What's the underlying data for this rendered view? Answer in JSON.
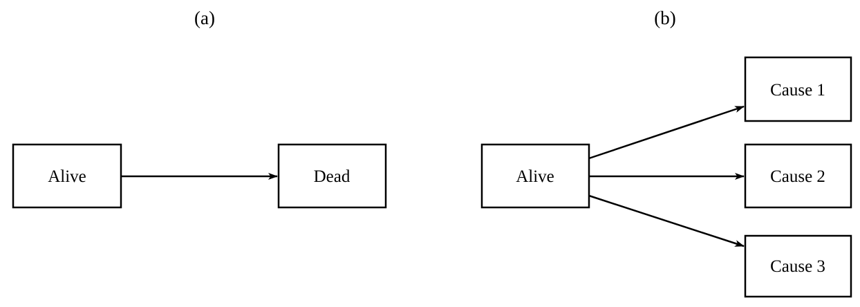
{
  "panels": [
    {
      "label": "(a)",
      "nodes": {
        "alive": "Alive",
        "dead": "Dead"
      },
      "edges": [
        {
          "from": "alive",
          "to": "dead"
        }
      ]
    },
    {
      "label": "(b)",
      "nodes": {
        "alive": "Alive",
        "cause1": "Cause 1",
        "cause2": "Cause 2",
        "cause3": "Cause 3"
      },
      "edges": [
        {
          "from": "alive",
          "to": "cause1"
        },
        {
          "from": "alive",
          "to": "cause2"
        },
        {
          "from": "alive",
          "to": "cause3"
        }
      ]
    }
  ]
}
